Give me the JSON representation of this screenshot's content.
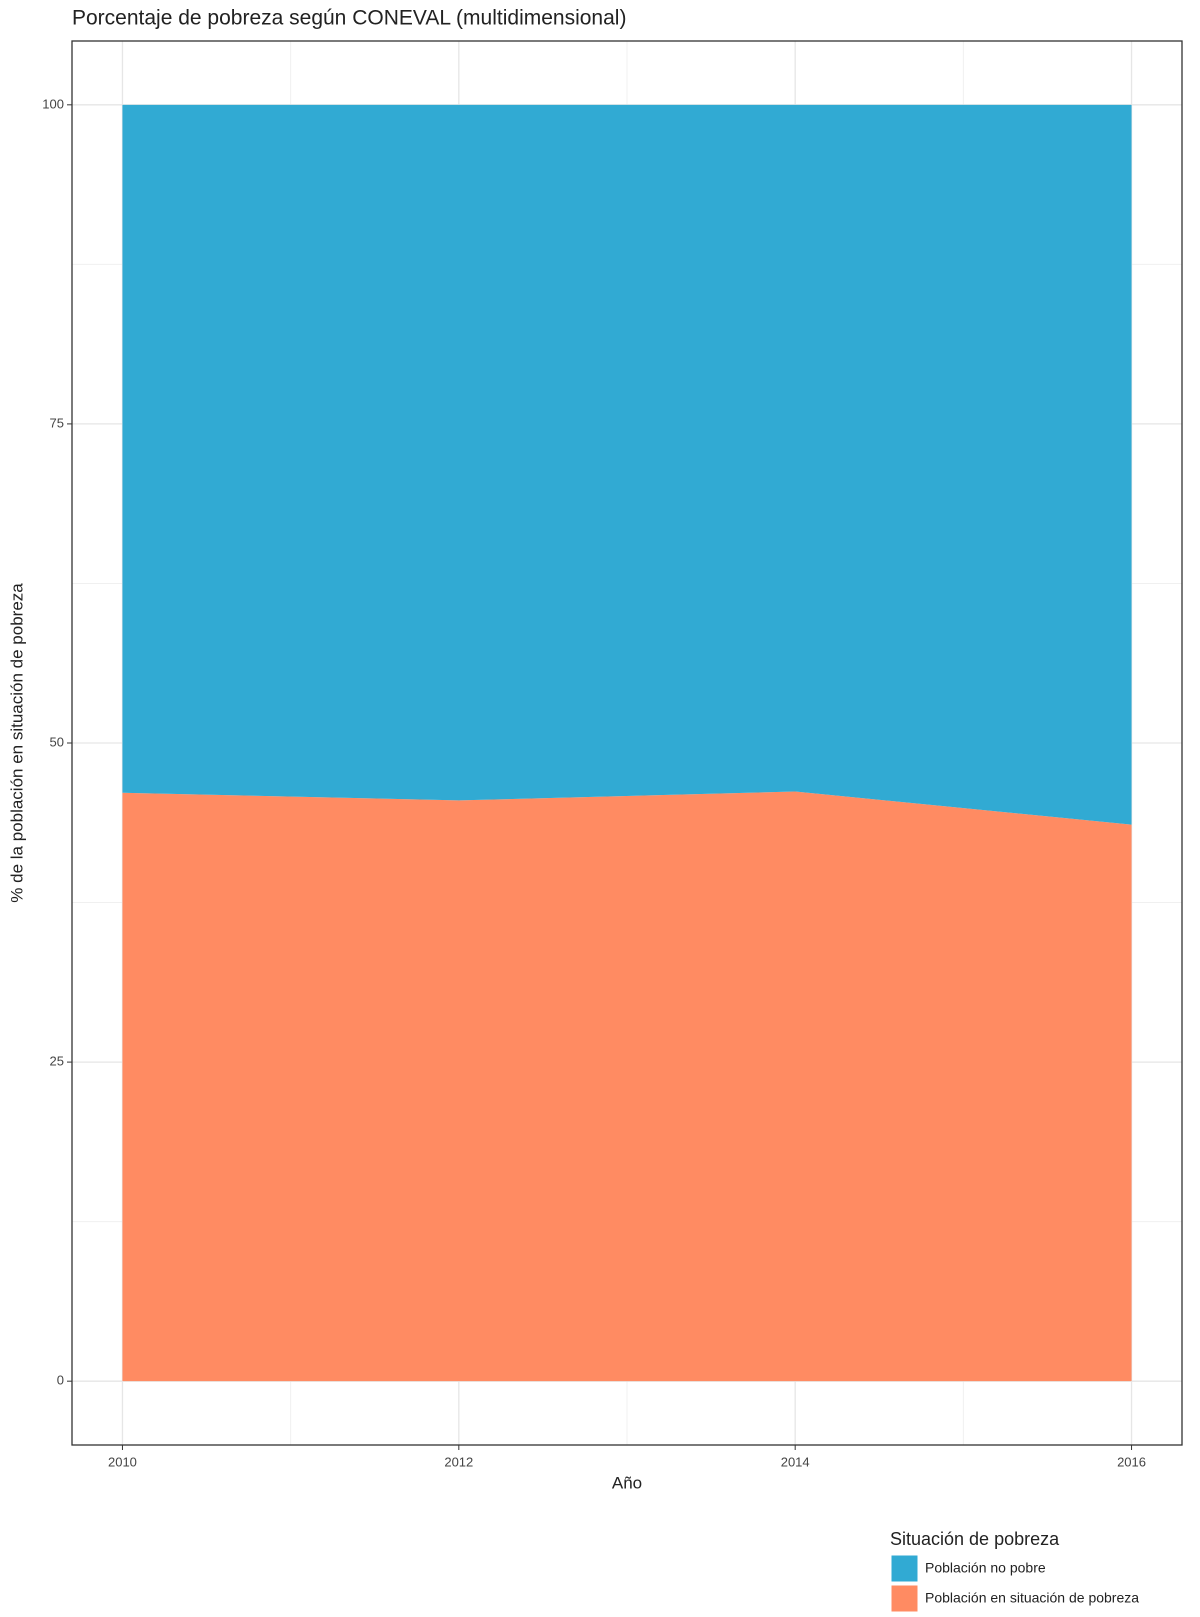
{
  "chart_data": {
    "type": "stacked_area",
    "title": "Porcentaje de pobreza según CONEVAL (multidimensional)",
    "x_label": "Año",
    "y_label": "% de la población en situación de pobreza",
    "x": [
      2010,
      2012,
      2014,
      2016
    ],
    "series": [
      {
        "name": "Población no pobre",
        "color": "#31aad3",
        "values": [
          53.9,
          54.5,
          53.8,
          56.4
        ]
      },
      {
        "name": "Población en situación de pobreza",
        "color": "#ff8b62",
        "values": [
          46.1,
          45.5,
          46.2,
          43.6
        ]
      }
    ],
    "legend_title": "Situación de pobreza",
    "xlim": [
      2009.7,
      2016.3
    ],
    "xticks": [
      2010,
      2012,
      2014,
      2016
    ],
    "ylim": [
      -5,
      105
    ],
    "yticks": [
      0,
      25,
      50,
      75,
      100
    ],
    "grid": true,
    "legend_position": "bottom-right"
  }
}
